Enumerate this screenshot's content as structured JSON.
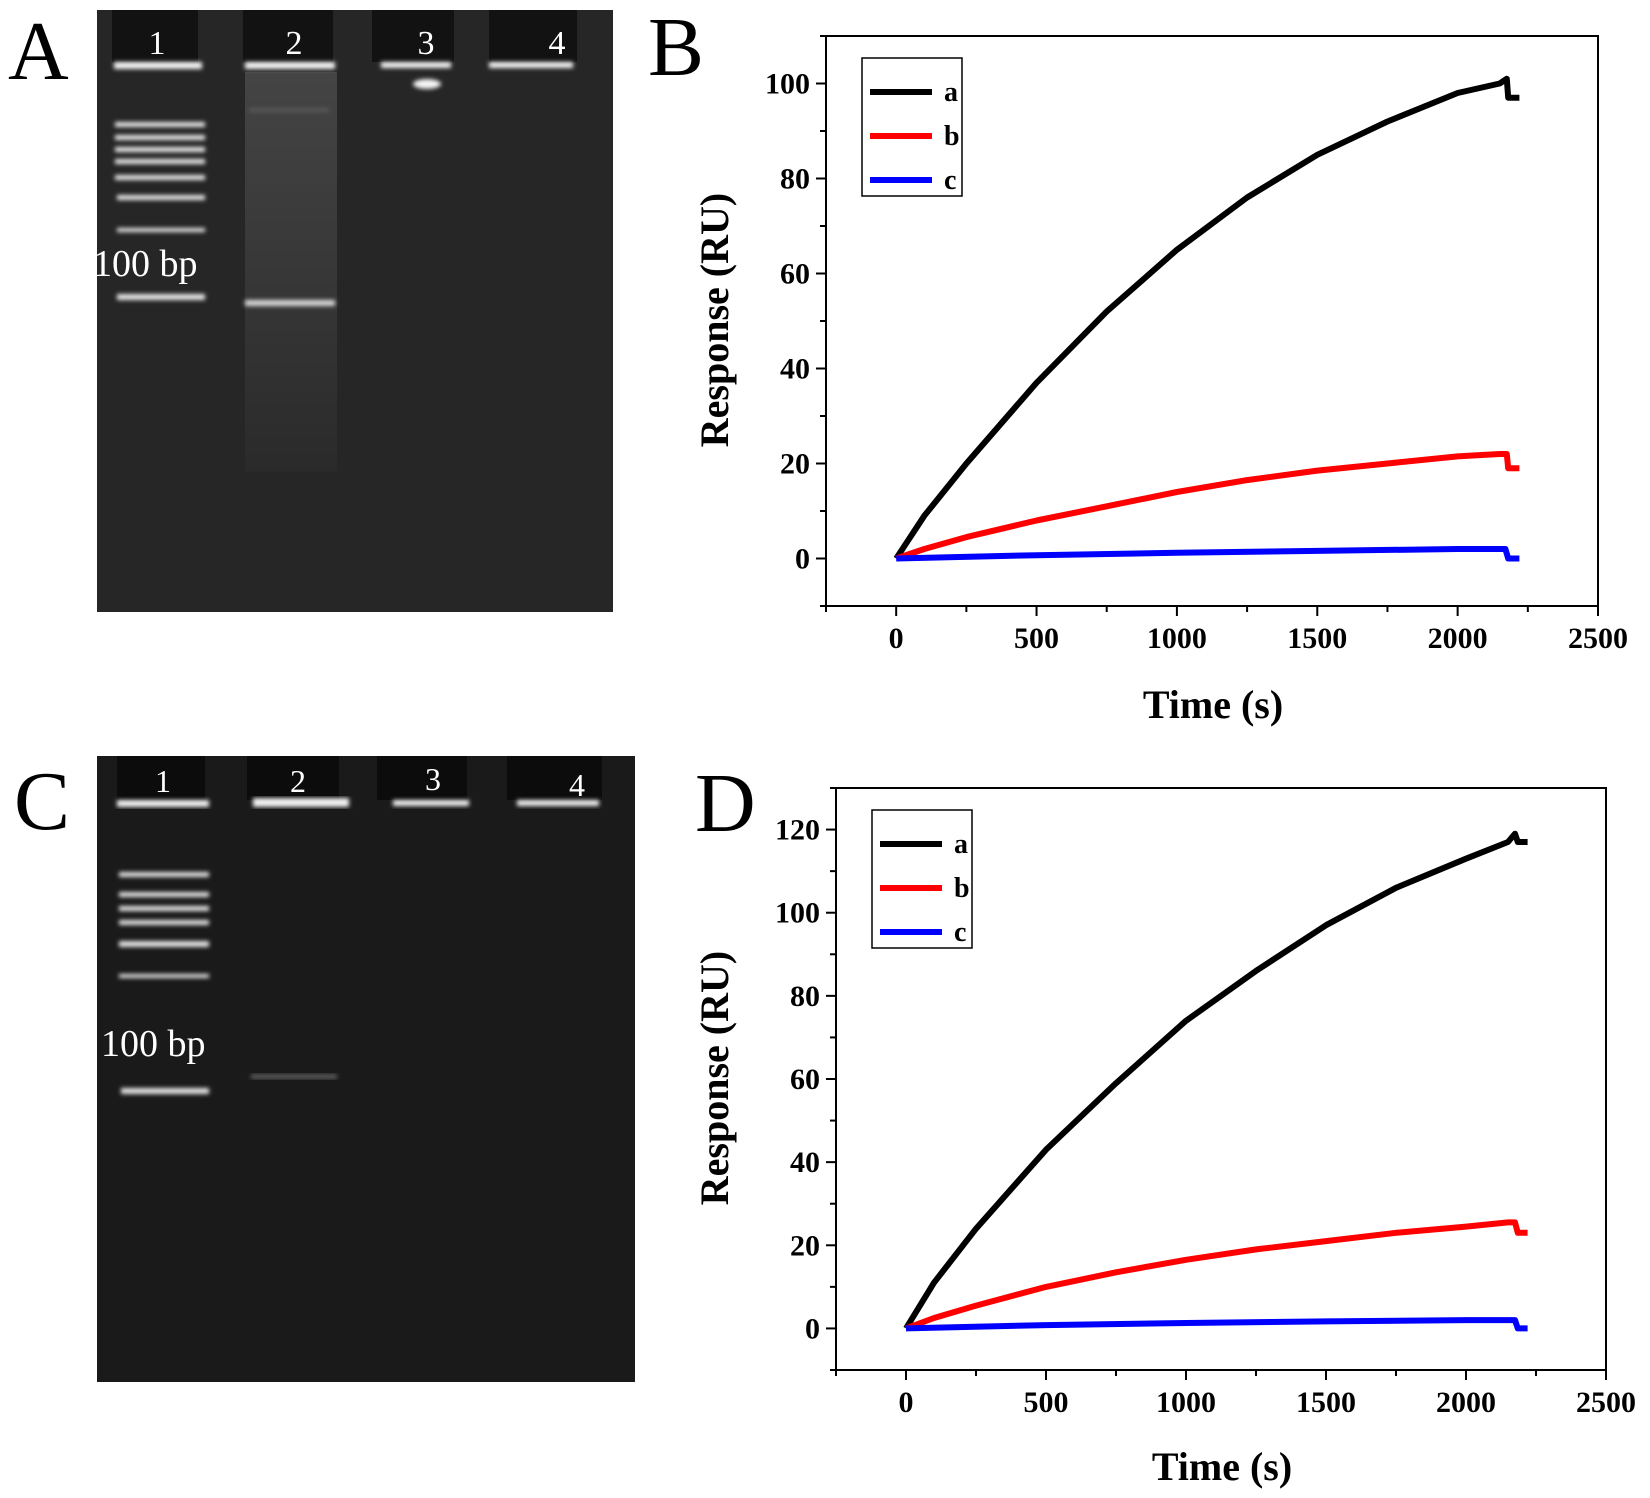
{
  "panels": {
    "A": "A",
    "B": "B",
    "C": "C",
    "D": "D"
  },
  "gels": [
    {
      "id": "A",
      "lane_labels": [
        "1",
        "2",
        "3",
        "4"
      ],
      "marker_label": "100 bp"
    },
    {
      "id": "C",
      "lane_labels": [
        "1",
        "2",
        "3",
        "4"
      ],
      "marker_label": "100 bp"
    }
  ],
  "colors": {
    "a": "#000000",
    "b": "#ff0000",
    "c": "#0000ff",
    "gel_bg": "#222222"
  },
  "chart_data": [
    {
      "panel": "B",
      "type": "line",
      "xlabel": "Time (s)",
      "ylabel": "Response (RU)",
      "xlim": [
        -250,
        2500
      ],
      "ylim": [
        -10,
        110
      ],
      "xticks": [
        0,
        500,
        1000,
        1500,
        2000,
        2500
      ],
      "yticks": [
        0,
        20,
        40,
        60,
        80,
        100
      ],
      "legend_position": "top-left",
      "series": [
        {
          "name": "a",
          "color": "#000000",
          "x": [
            0,
            100,
            250,
            500,
            750,
            1000,
            1250,
            1500,
            1750,
            2000,
            2150,
            2175,
            2180,
            2220
          ],
          "y": [
            0,
            9,
            20,
            37,
            52,
            65,
            76,
            85,
            92,
            98,
            100,
            101,
            97,
            97
          ]
        },
        {
          "name": "b",
          "color": "#ff0000",
          "x": [
            0,
            100,
            250,
            500,
            750,
            1000,
            1250,
            1500,
            1750,
            2000,
            2150,
            2175,
            2180,
            2220
          ],
          "y": [
            0,
            2,
            4.5,
            8,
            11,
            14,
            16.5,
            18.5,
            20,
            21.5,
            22,
            22,
            19,
            19
          ]
        },
        {
          "name": "c",
          "color": "#0000ff",
          "x": [
            0,
            500,
            1000,
            1500,
            2000,
            2170,
            2180,
            2220
          ],
          "y": [
            0,
            0.7,
            1.2,
            1.6,
            2,
            2,
            0,
            0
          ]
        }
      ]
    },
    {
      "panel": "D",
      "type": "line",
      "xlabel": "Time (s)",
      "ylabel": "Response (RU)",
      "xlim": [
        -250,
        2500
      ],
      "ylim": [
        -10,
        130
      ],
      "xticks": [
        0,
        500,
        1000,
        1500,
        2000,
        2500
      ],
      "yticks": [
        0,
        20,
        40,
        60,
        80,
        100,
        120
      ],
      "legend_position": "top-left",
      "series": [
        {
          "name": "a",
          "color": "#000000",
          "x": [
            0,
            100,
            250,
            500,
            750,
            1000,
            1250,
            1500,
            1750,
            2000,
            2150,
            2175,
            2185,
            2220
          ],
          "y": [
            0,
            11,
            24,
            43,
            59,
            74,
            86,
            97,
            106,
            113,
            117,
            119,
            117,
            117
          ]
        },
        {
          "name": "b",
          "color": "#ff0000",
          "x": [
            0,
            100,
            250,
            500,
            750,
            1000,
            1250,
            1500,
            1750,
            2000,
            2150,
            2175,
            2185,
            2220
          ],
          "y": [
            0,
            2.5,
            5.5,
            10,
            13.5,
            16.5,
            19,
            21,
            23,
            24.5,
            25.5,
            25.5,
            23,
            23
          ]
        },
        {
          "name": "c",
          "color": "#0000ff",
          "x": [
            0,
            500,
            1000,
            1500,
            2000,
            2175,
            2185,
            2220
          ],
          "y": [
            0,
            0.8,
            1.3,
            1.7,
            2,
            2,
            0,
            0
          ]
        }
      ]
    }
  ]
}
